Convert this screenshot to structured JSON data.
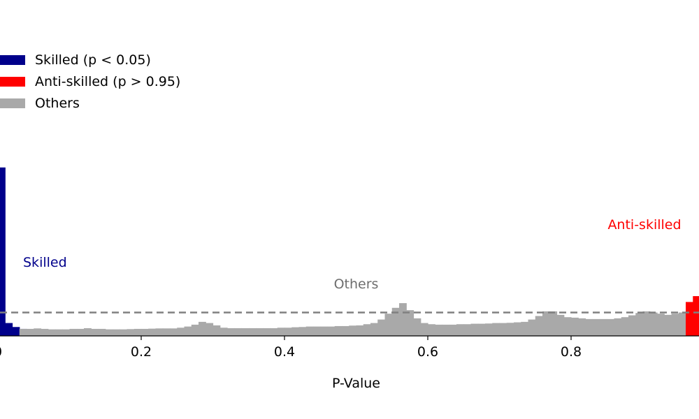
{
  "chart_data": {
    "type": "bar",
    "xlabel": "P-Value",
    "ylabel": "",
    "xlim": [
      0,
      1
    ],
    "bin_width": 0.01,
    "x_ticks": [
      "0",
      "0.2",
      "0.4",
      "0.6",
      "0.8"
    ],
    "x_tick_values": [
      0.0,
      0.2,
      0.4,
      0.6,
      0.8
    ],
    "expected_line": 1.0,
    "colors": {
      "skilled": "#00008b",
      "anti_skilled": "#ff0000",
      "others": "#a9a9a9",
      "reference_line": "#808080"
    },
    "legend": [
      {
        "label": "Skilled (p < 0.05)",
        "color": "#00008b"
      },
      {
        "label": "Anti-skilled (p > 0.95)",
        "color": "#ff0000"
      },
      {
        "label": "Others",
        "color": "#a9a9a9"
      }
    ],
    "annotations": [
      {
        "text": "Skilled",
        "color": "#00008b"
      },
      {
        "text": "Others",
        "color": "#6e6e6e"
      },
      {
        "text": "Anti-skilled",
        "color": "#ff0000"
      }
    ],
    "series": [
      {
        "name": "Skilled (p < 0.05)",
        "start_bin": 0,
        "values": [
          7.2,
          0.55,
          0.38,
          0.3
        ]
      },
      {
        "name": "Others",
        "start_bin": 3,
        "values": [
          0.3,
          0.3,
          0.32,
          0.3,
          0.28,
          0.28,
          0.28,
          0.3,
          0.3,
          0.33,
          0.3,
          0.3,
          0.28,
          0.28,
          0.28,
          0.29,
          0.3,
          0.3,
          0.31,
          0.32,
          0.32,
          0.32,
          0.35,
          0.4,
          0.48,
          0.6,
          0.55,
          0.45,
          0.35,
          0.33,
          0.33,
          0.33,
          0.33,
          0.33,
          0.33,
          0.33,
          0.35,
          0.35,
          0.37,
          0.38,
          0.4,
          0.4,
          0.4,
          0.4,
          0.42,
          0.42,
          0.44,
          0.45,
          0.5,
          0.55,
          0.7,
          0.95,
          1.2,
          1.4,
          1.1,
          0.75,
          0.55,
          0.5,
          0.48,
          0.48,
          0.48,
          0.5,
          0.5,
          0.52,
          0.52,
          0.53,
          0.55,
          0.55,
          0.56,
          0.58,
          0.6,
          0.7,
          0.85,
          1.05,
          1.05,
          0.9,
          0.8,
          0.78,
          0.75,
          0.72,
          0.72,
          0.72,
          0.72,
          0.75,
          0.8,
          0.88,
          0.98,
          1.05,
          1.0,
          0.95,
          0.9,
          0.95,
          1.0,
          1.12,
          1.12
        ]
      },
      {
        "name": "Anti-skilled (p > 0.95)",
        "start_bin": 96,
        "values": [
          1.45,
          1.7,
          1.85,
          2.5
        ]
      }
    ]
  }
}
